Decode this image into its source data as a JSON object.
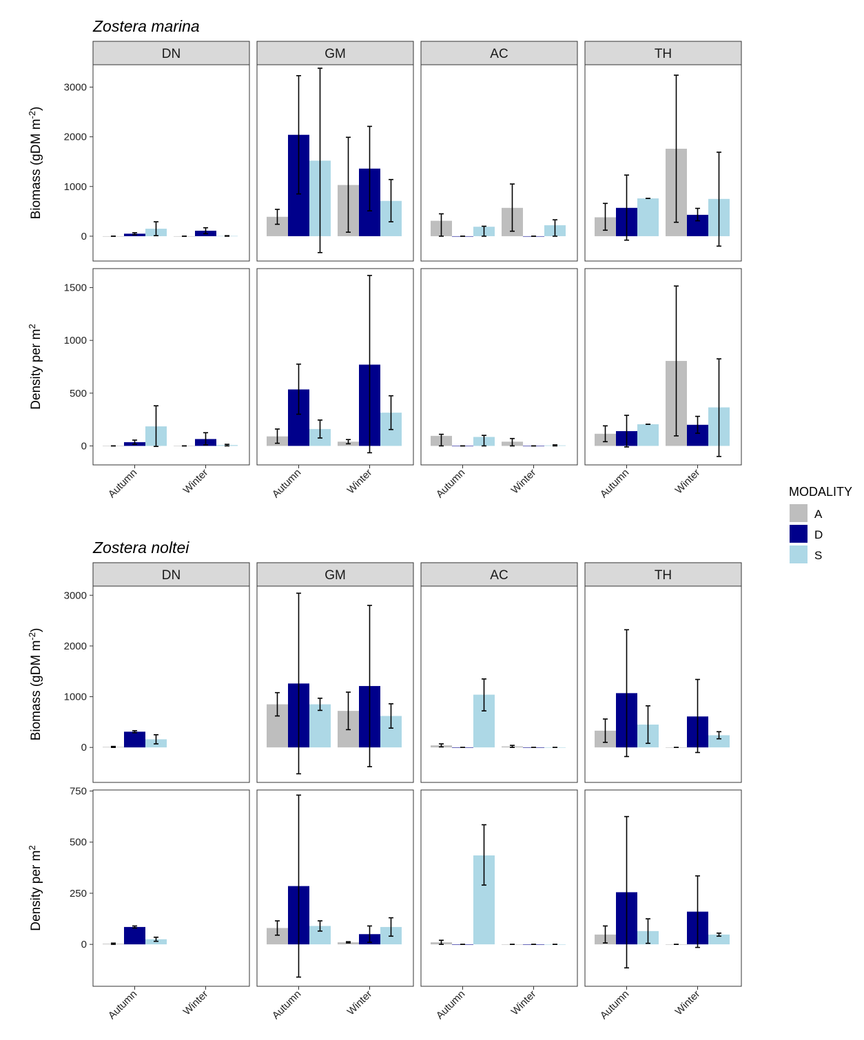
{
  "figure": {
    "legend": {
      "title": "MODALITY",
      "placement": "right",
      "items": [
        {
          "label": "A",
          "color": "#bebebe"
        },
        {
          "label": "D",
          "color": "#00008b"
        },
        {
          "label": "S",
          "color": "#add8e6"
        }
      ]
    },
    "sites": [
      "DN",
      "GM",
      "AC",
      "TH"
    ],
    "seasons": [
      "Autumn",
      "Winter"
    ],
    "row_labels": {
      "biomass": {
        "main": "Biomass (gDM m",
        "sup": "-2",
        "end": ")"
      },
      "density": {
        "main": "Density per m",
        "sup": "2"
      }
    }
  },
  "chart_data": [
    {
      "type": "bar",
      "title": "Zostera marina",
      "ylabel": "Biomass (gDM m-2)",
      "ylim": [
        -500,
        3450
      ],
      "yticks": [
        0,
        1000,
        2000,
        3000
      ],
      "categories": [
        "Autumn",
        "Winter"
      ],
      "series_names": [
        "A",
        "D",
        "S"
      ],
      "grid": false,
      "panels": [
        {
          "site": "DN",
          "A": [
            [
              0,
              0,
              0
            ],
            [
              0,
              0,
              0
            ]
          ],
          "D": [
            [
              50,
              30,
              70
            ],
            [
              110,
              50,
              170
            ]
          ],
          "S": [
            [
              150,
              10,
              290
            ],
            [
              5,
              0,
              10
            ]
          ]
        },
        {
          "site": "GM",
          "A": [
            [
              390,
              240,
              540
            ],
            [
              1030,
              80,
              1990
            ]
          ],
          "D": [
            [
              2040,
              850,
              3230
            ],
            [
              1360,
              510,
              2210
            ]
          ],
          "S": [
            [
              1520,
              -330,
              3380
            ],
            [
              710,
              290,
              1140
            ]
          ]
        },
        {
          "site": "AC",
          "A": [
            [
              310,
              0,
              450
            ],
            [
              570,
              100,
              1050
            ]
          ],
          "D": [
            [
              0,
              0,
              0
            ],
            [
              0,
              0,
              0
            ]
          ],
          "S": [
            [
              190,
              0,
              200
            ],
            [
              220,
              0,
              330
            ]
          ]
        },
        {
          "site": "TH",
          "A": [
            [
              380,
              120,
              660
            ],
            [
              1760,
              280,
              3240
            ]
          ],
          "D": [
            [
              570,
              -80,
              1230
            ],
            [
              430,
              310,
              560
            ]
          ],
          "S": [
            [
              760,
              760,
              760
            ],
            [
              750,
              -200,
              1690
            ]
          ]
        }
      ]
    },
    {
      "type": "bar",
      "title": "Zostera marina",
      "ylabel": "Density per m2",
      "ylim": [
        -180,
        1680
      ],
      "yticks": [
        0,
        500,
        1000,
        1500
      ],
      "categories": [
        "Autumn",
        "Winter"
      ],
      "series_names": [
        "A",
        "D",
        "S"
      ],
      "grid": false,
      "panels": [
        {
          "site": "DN",
          "A": [
            [
              0,
              0,
              0
            ],
            [
              0,
              0,
              0
            ]
          ],
          "D": [
            [
              35,
              15,
              55
            ],
            [
              65,
              10,
              125
            ]
          ],
          "S": [
            [
              185,
              -5,
              380
            ],
            [
              8,
              0,
              15
            ]
          ]
        },
        {
          "site": "GM",
          "A": [
            [
              90,
              25,
              160
            ],
            [
              40,
              20,
              60
            ]
          ],
          "D": [
            [
              535,
              300,
              775
            ],
            [
              770,
              -65,
              1615
            ]
          ],
          "S": [
            [
              160,
              75,
              245
            ],
            [
              315,
              155,
              475
            ]
          ]
        },
        {
          "site": "AC",
          "A": [
            [
              95,
              0,
              110
            ],
            [
              40,
              0,
              70
            ]
          ],
          "D": [
            [
              0,
              0,
              0
            ],
            [
              0,
              0,
              0
            ]
          ],
          "S": [
            [
              85,
              0,
              100
            ],
            [
              5,
              0,
              10
            ]
          ]
        },
        {
          "site": "TH",
          "A": [
            [
              115,
              40,
              190
            ],
            [
              805,
              95,
              1515
            ]
          ],
          "D": [
            [
              140,
              -10,
              290
            ],
            [
              200,
              120,
              280
            ]
          ],
          "S": [
            [
              205,
              205,
              205
            ],
            [
              365,
              -100,
              825
            ]
          ]
        }
      ]
    },
    {
      "type": "bar",
      "title": "Zostera noltei",
      "ylabel": "Biomass (gDM m-2)",
      "ylim": [
        -690,
        3180
      ],
      "yticks": [
        0,
        1000,
        2000,
        3000
      ],
      "categories": [
        "Autumn",
        "Winter"
      ],
      "series_names": [
        "A",
        "D",
        "S"
      ],
      "grid": false,
      "panels": [
        {
          "site": "DN",
          "A": [
            [
              10,
              0,
              20
            ],
            null
          ],
          "D": [
            [
              310,
              290,
              330
            ],
            null
          ],
          "S": [
            [
              160,
              70,
              250
            ],
            null
          ]
        },
        {
          "site": "GM",
          "A": [
            [
              850,
              620,
              1080
            ],
            [
              720,
              350,
              1090
            ]
          ],
          "D": [
            [
              1260,
              -520,
              3040
            ],
            [
              1210,
              -380,
              2800
            ]
          ],
          "S": [
            [
              850,
              730,
              970
            ],
            [
              620,
              380,
              860
            ]
          ]
        },
        {
          "site": "AC",
          "A": [
            [
              40,
              10,
              70
            ],
            [
              20,
              0,
              40
            ]
          ],
          "D": [
            [
              0,
              0,
              0
            ],
            [
              0,
              0,
              0
            ]
          ],
          "S": [
            [
              1040,
              720,
              1350
            ],
            [
              0,
              0,
              0
            ]
          ]
        },
        {
          "site": "TH",
          "A": [
            [
              330,
              100,
              560
            ],
            [
              0,
              0,
              0
            ]
          ],
          "D": [
            [
              1070,
              -180,
              2320
            ],
            [
              610,
              -100,
              1340
            ]
          ],
          "S": [
            [
              450,
              80,
              820
            ],
            [
              240,
              170,
              310
            ]
          ]
        }
      ]
    },
    {
      "type": "bar",
      "title": "Zostera noltei",
      "ylabel": "Density per m2",
      "ylim": [
        -205,
        755
      ],
      "yticks": [
        0,
        250,
        500,
        750
      ],
      "categories": [
        "Autumn",
        "Winter"
      ],
      "series_names": [
        "A",
        "D",
        "S"
      ],
      "grid": false,
      "panels": [
        {
          "site": "DN",
          "A": [
            [
              3,
              0,
              6
            ],
            null
          ],
          "D": [
            [
              85,
              80,
              90
            ],
            null
          ],
          "S": [
            [
              25,
              15,
              35
            ],
            null
          ]
        },
        {
          "site": "GM",
          "A": [
            [
              80,
              45,
              115
            ],
            [
              10,
              7,
              13
            ]
          ],
          "D": [
            [
              285,
              -160,
              730
            ],
            [
              50,
              10,
              90
            ]
          ],
          "S": [
            [
              90,
              65,
              115
            ],
            [
              85,
              40,
              130
            ]
          ]
        },
        {
          "site": "AC",
          "A": [
            [
              10,
              0,
              20
            ],
            [
              0,
              0,
              0
            ]
          ],
          "D": [
            [
              0,
              0,
              0
            ],
            [
              0,
              0,
              0
            ]
          ],
          "S": [
            [
              435,
              290,
              585
            ],
            [
              0,
              0,
              0
            ]
          ]
        },
        {
          "site": "TH",
          "A": [
            [
              48,
              7,
              90
            ],
            [
              0,
              0,
              0
            ]
          ],
          "D": [
            [
              255,
              -115,
              625
            ],
            [
              160,
              -15,
              335
            ]
          ],
          "S": [
            [
              65,
              5,
              125
            ],
            [
              48,
              40,
              55
            ]
          ]
        }
      ]
    }
  ]
}
